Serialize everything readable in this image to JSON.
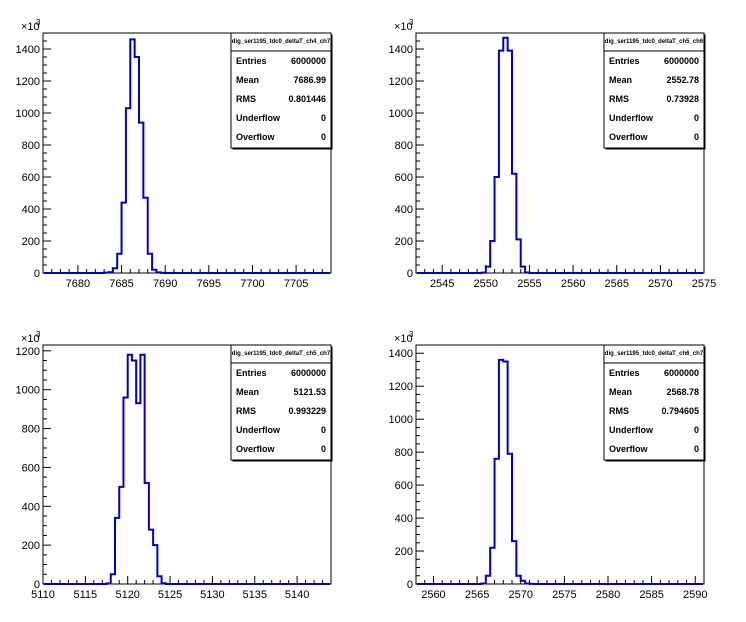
{
  "chart_data": [
    {
      "type": "histogram",
      "title": "",
      "xlim": [
        7676,
        7709
      ],
      "ylim": [
        0,
        1.5
      ],
      "y_multiplier_label": "×10",
      "y_multiplier_exp": "3",
      "xticks": [
        7680,
        7685,
        7690,
        7695,
        7700,
        7705
      ],
      "yticks": [
        0,
        200,
        400,
        600,
        800,
        1000,
        1200,
        1400
      ],
      "bin_edges": [
        7683,
        7683.5,
        7684,
        7684.5,
        7685,
        7685.5,
        7686,
        7686.5,
        7687,
        7687.5,
        7688,
        7688.5,
        7689,
        7689.5,
        7690
      ],
      "counts": [
        0.002,
        0.005,
        0.03,
        0.12,
        0.44,
        1.03,
        1.46,
        1.35,
        0.94,
        0.47,
        0.12,
        0.02,
        0.004,
        0.001
      ],
      "color": "#0000cc",
      "stats": {
        "name": "dig_ser1195_tdc0_deltaT_ch4_ch7",
        "rows": [
          {
            "label": "Entries",
            "value": "6000000"
          },
          {
            "label": "Mean",
            "value": "7686.99"
          },
          {
            "label": "RMS",
            "value": "0.801446"
          },
          {
            "label": "Underflow",
            "value": "0"
          },
          {
            "label": "Overflow",
            "value": "0"
          }
        ]
      }
    },
    {
      "type": "histogram",
      "title": "",
      "xlim": [
        2542,
        2575
      ],
      "ylim": [
        0,
        1.5
      ],
      "y_multiplier_label": "×10",
      "y_multiplier_exp": "3",
      "xticks": [
        2545,
        2550,
        2555,
        2560,
        2565,
        2570,
        2575
      ],
      "yticks": [
        0,
        200,
        400,
        600,
        800,
        1000,
        1200,
        1400
      ],
      "bin_edges": [
        2549.5,
        2550,
        2550.5,
        2551,
        2551.5,
        2552,
        2552.5,
        2553,
        2553.5,
        2554,
        2554.5,
        2555
      ],
      "counts": [
        0.002,
        0.04,
        0.2,
        0.6,
        1.39,
        1.47,
        1.39,
        0.62,
        0.21,
        0.04,
        0.003
      ],
      "color": "#0000cc",
      "stats": {
        "name": "dig_ser1195_tdc0_deltaT_ch5_ch6",
        "rows": [
          {
            "label": "Entries",
            "value": "6000000"
          },
          {
            "label": "Mean",
            "value": "2552.78"
          },
          {
            "label": "RMS",
            "value": "0.73928"
          },
          {
            "label": "Underflow",
            "value": "0"
          },
          {
            "label": "Overflow",
            "value": "0"
          }
        ]
      }
    },
    {
      "type": "histogram",
      "title": "",
      "xlim": [
        5110,
        5144
      ],
      "ylim": [
        0,
        1.23
      ],
      "y_multiplier_label": "×10",
      "y_multiplier_exp": "3",
      "xticks": [
        5110,
        5115,
        5120,
        5125,
        5130,
        5135,
        5140
      ],
      "yticks": [
        0,
        200,
        400,
        600,
        800,
        1000,
        1200
      ],
      "bin_edges": [
        5117.5,
        5118,
        5118.5,
        5119,
        5119.5,
        5120,
        5120.5,
        5121,
        5121.5,
        5122,
        5122.5,
        5123,
        5123.5,
        5124,
        5124.5
      ],
      "counts": [
        0.003,
        0.05,
        0.34,
        0.5,
        0.96,
        1.18,
        1.15,
        0.93,
        1.18,
        0.52,
        0.28,
        0.2,
        0.04,
        0.004
      ],
      "color": "#0000cc",
      "stats": {
        "name": "dig_ser1195_tdc0_deltaT_ch5_ch7",
        "rows": [
          {
            "label": "Entries",
            "value": "6000000"
          },
          {
            "label": "Mean",
            "value": "5121.53"
          },
          {
            "label": "RMS",
            "value": "0.993229"
          },
          {
            "label": "Underflow",
            "value": "0"
          },
          {
            "label": "Overflow",
            "value": "0"
          }
        ]
      }
    },
    {
      "type": "histogram",
      "title": "",
      "xlim": [
        2558,
        2591
      ],
      "ylim": [
        0,
        1.45
      ],
      "y_multiplier_label": "×10",
      "y_multiplier_exp": "3",
      "xticks": [
        2560,
        2565,
        2570,
        2575,
        2580,
        2585,
        2590
      ],
      "yticks": [
        0,
        200,
        400,
        600,
        800,
        1000,
        1200,
        1400
      ],
      "bin_edges": [
        2565.5,
        2566,
        2566.5,
        2567,
        2567.5,
        2568,
        2568.5,
        2569,
        2569.5,
        2570,
        2570.5,
        2571,
        2571.5
      ],
      "counts": [
        0.003,
        0.05,
        0.22,
        0.76,
        1.36,
        1.35,
        0.79,
        0.26,
        0.05,
        0.02,
        0.003,
        0.001
      ],
      "color": "#0000cc",
      "stats": {
        "name": "dig_ser1195_tdc0_deltaT_ch6_ch7",
        "rows": [
          {
            "label": "Entries",
            "value": "6000000"
          },
          {
            "label": "Mean",
            "value": "2568.78"
          },
          {
            "label": "RMS",
            "value": "0.794605"
          },
          {
            "label": "Underflow",
            "value": "0"
          },
          {
            "label": "Overflow",
            "value": "0"
          }
        ]
      }
    }
  ]
}
